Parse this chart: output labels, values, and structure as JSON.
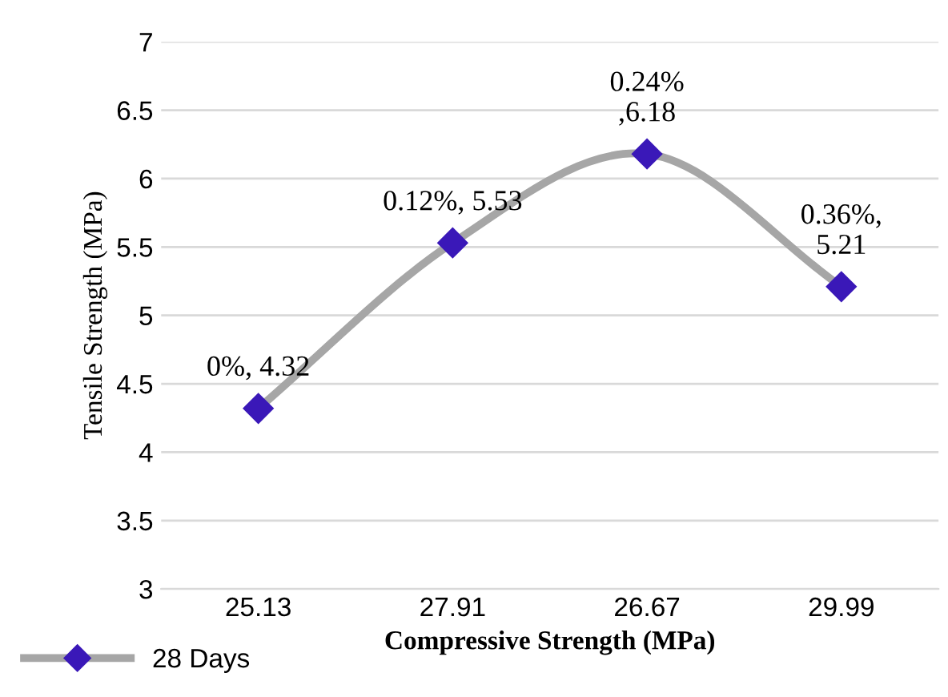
{
  "chart_data": {
    "type": "line",
    "xlabel": "Compressive Strength (MPa)",
    "ylabel": "Tensile Strength (MPa)",
    "categories": [
      "25.13",
      "27.91",
      "26.67",
      "29.99"
    ],
    "series": [
      {
        "name": "28 Days",
        "color": "#a6a6a6",
        "colors": [
          "#3a18b8",
          "#3a18b8",
          "#3a18b8",
          "#3a18b8"
        ],
        "values": [
          4.32,
          5.53,
          6.18,
          5.21
        ],
        "value_labels": [
          "0%, 4.32",
          "0.12%, 5.53",
          "0.24%\n,6.18",
          "0.36%,\n5.21"
        ]
      }
    ],
    "ylim": [
      3,
      7
    ],
    "yticks": [
      3,
      3.5,
      4,
      4.5,
      5,
      5.5,
      6,
      6.5,
      7
    ],
    "grid": "y",
    "legend": "bottom left",
    "marker": "diamond",
    "line_style": "solid"
  }
}
